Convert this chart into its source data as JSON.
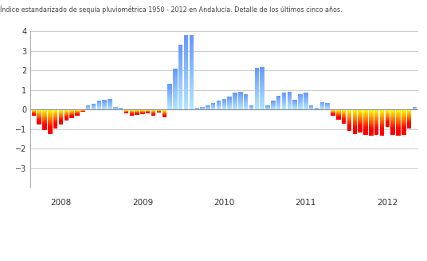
{
  "title": "Índice estandarizado de sequía pluviométrica 1950 - 2012 en Andalucía. Detalle de los últimos cinco años.",
  "ylim": [
    -4,
    4
  ],
  "yticks": [
    -3,
    -2,
    -1,
    0,
    1,
    2,
    3,
    4
  ],
  "background_color": "#ffffff",
  "grid_color": "#cccccc",
  "year_labels": [
    "2008",
    "2009",
    "2010",
    "2011",
    "2012"
  ],
  "year_positions": [
    5,
    20,
    35,
    50,
    65
  ],
  "values": [
    -0.3,
    -0.75,
    -1.05,
    -1.25,
    -0.95,
    -0.75,
    -0.55,
    -0.45,
    -0.3,
    -0.1,
    0.2,
    0.3,
    0.45,
    0.5,
    0.55,
    0.15,
    0.1,
    -0.2,
    -0.3,
    -0.28,
    -0.25,
    -0.18,
    -0.3,
    -0.15,
    -0.4,
    1.3,
    2.1,
    3.3,
    3.8,
    3.8,
    0.1,
    0.15,
    0.2,
    0.35,
    0.45,
    0.55,
    0.65,
    0.85,
    0.9,
    0.8,
    0.2,
    2.15,
    2.18,
    0.2,
    0.45,
    0.7,
    0.85,
    0.9,
    0.5,
    0.8,
    0.85,
    0.2,
    0.1,
    0.4,
    0.35,
    -0.3,
    -0.5,
    -0.7,
    -1.1,
    -1.25,
    -1.15,
    -1.3,
    -1.35,
    -1.3,
    -1.35,
    -0.9,
    -1.3,
    -1.35,
    -1.3,
    -0.95,
    0.12
  ]
}
